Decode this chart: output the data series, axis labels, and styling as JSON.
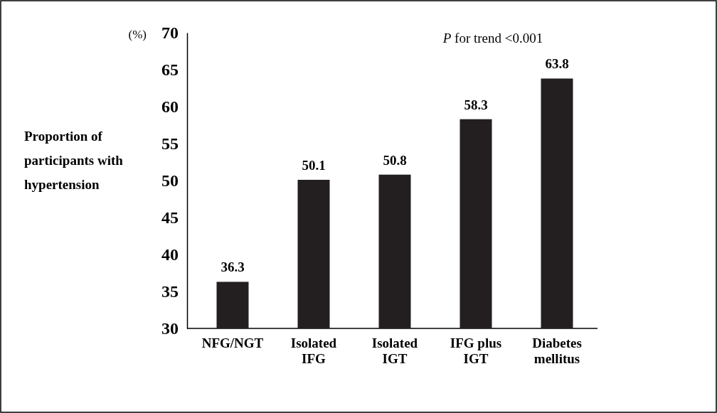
{
  "chart_data": {
    "type": "bar",
    "ylabel": "Proportion of participants with hypertension",
    "categories": [
      "NFG/NGT",
      "Isolated IFG",
      "Isolated IGT",
      "IFG plus IGT",
      "Diabetes mellitus"
    ],
    "values": [
      36.3,
      50.1,
      50.8,
      58.3,
      63.8
    ],
    "color": "#231f20",
    "ylim": [
      30,
      70
    ],
    "yticks": [
      30,
      35,
      40,
      45,
      50,
      55,
      60,
      65,
      70
    ],
    "grid": false,
    "data_labels": true,
    "annotations": [
      "(%)",
      "P for trend <0.001"
    ]
  }
}
